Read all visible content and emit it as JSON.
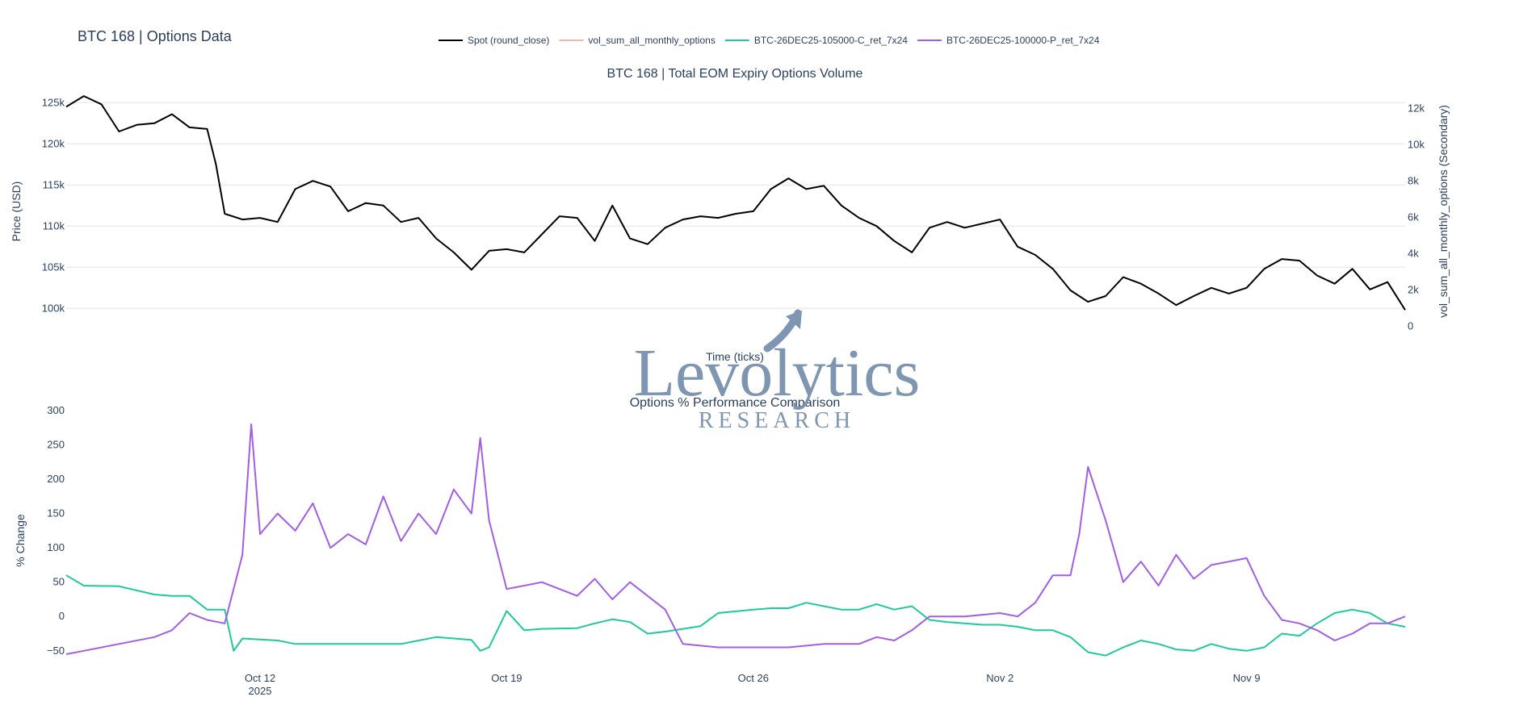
{
  "page_title": "BTC 168 | Options Data",
  "logo": {
    "brand": "Levolytics",
    "sub": "RESEARCH"
  },
  "legend": [
    {
      "name": "Spot (round_close)",
      "color": "#000000",
      "muted": false
    },
    {
      "name": "vol_sum_all_monthly_options",
      "color": "#f4b6a6",
      "muted": true
    },
    {
      "name": "BTC-26DEC25-105000-C_ret_7x24",
      "color": "#1ec99b",
      "muted": false
    },
    {
      "name": "BTC-26DEC25-100000-P_ret_7x24",
      "color": "#a25ee6",
      "muted": false
    }
  ],
  "chart_data": [
    {
      "type": "line",
      "title": "BTC 168 | Total EOM Expiry Options Volume",
      "xlabel": "Time (ticks)",
      "ylabel": "Price (USD)",
      "y2label": "vol_sum_all_monthly_options (Secondary)",
      "xlim": [
        "2025-10-06T12:00",
        "2025-11-13T12:00"
      ],
      "ylim": [
        96500,
        126500
      ],
      "y2lim": [
        -600,
        13000
      ],
      "yticks": [
        {
          "v": 100000,
          "label": "100k"
        },
        {
          "v": 105000,
          "label": "105k"
        },
        {
          "v": 110000,
          "label": "110k"
        },
        {
          "v": 115000,
          "label": "115k"
        },
        {
          "v": 120000,
          "label": "120k"
        },
        {
          "v": 125000,
          "label": "125k"
        }
      ],
      "y2ticks": [
        {
          "v": 0,
          "label": "0"
        },
        {
          "v": 2000,
          "label": "2k"
        },
        {
          "v": 4000,
          "label": "4k"
        },
        {
          "v": 6000,
          "label": "6k"
        },
        {
          "v": 8000,
          "label": "8k"
        },
        {
          "v": 10000,
          "label": "10k"
        },
        {
          "v": 12000,
          "label": "12k"
        }
      ],
      "grid": true,
      "series": [
        {
          "name": "Spot (round_close)",
          "color": "#000000",
          "x": [
            "2025-10-06T12:00",
            "2025-10-07T00:00",
            "2025-10-07T12:00",
            "2025-10-08T00:00",
            "2025-10-08T12:00",
            "2025-10-09T00:00",
            "2025-10-09T12:00",
            "2025-10-10T00:00",
            "2025-10-10T12:00",
            "2025-10-10T18:00",
            "2025-10-11T00:00",
            "2025-10-11T12:00",
            "2025-10-12T00:00",
            "2025-10-12T12:00",
            "2025-10-13T00:00",
            "2025-10-13T12:00",
            "2025-10-14T00:00",
            "2025-10-14T12:00",
            "2025-10-15T00:00",
            "2025-10-15T12:00",
            "2025-10-16T00:00",
            "2025-10-16T12:00",
            "2025-10-17T00:00",
            "2025-10-17T12:00",
            "2025-10-18T00:00",
            "2025-10-18T12:00",
            "2025-10-19T00:00",
            "2025-10-19T12:00",
            "2025-10-20T00:00",
            "2025-10-20T12:00",
            "2025-10-21T00:00",
            "2025-10-21T12:00",
            "2025-10-22T00:00",
            "2025-10-22T12:00",
            "2025-10-23T00:00",
            "2025-10-23T12:00",
            "2025-10-24T00:00",
            "2025-10-24T12:00",
            "2025-10-25T00:00",
            "2025-10-25T12:00",
            "2025-10-26T00:00",
            "2025-10-26T12:00",
            "2025-10-27T00:00",
            "2025-10-27T12:00",
            "2025-10-28T00:00",
            "2025-10-28T12:00",
            "2025-10-29T00:00",
            "2025-10-29T12:00",
            "2025-10-30T00:00",
            "2025-10-30T12:00",
            "2025-10-31T00:00",
            "2025-10-31T12:00",
            "2025-11-01T00:00",
            "2025-11-01T12:00",
            "2025-11-02T00:00",
            "2025-11-02T12:00",
            "2025-11-03T00:00",
            "2025-11-03T12:00",
            "2025-11-04T00:00",
            "2025-11-04T12:00",
            "2025-11-05T00:00",
            "2025-11-05T12:00",
            "2025-11-06T00:00",
            "2025-11-06T12:00",
            "2025-11-07T00:00",
            "2025-11-07T12:00",
            "2025-11-08T00:00",
            "2025-11-08T12:00",
            "2025-11-09T00:00",
            "2025-11-09T12:00",
            "2025-11-10T00:00",
            "2025-11-10T12:00",
            "2025-11-11T00:00",
            "2025-11-11T12:00",
            "2025-11-12T00:00",
            "2025-11-12T12:00",
            "2025-11-13T00:00",
            "2025-11-13T12:00"
          ],
          "y": [
            124500,
            125800,
            124800,
            121500,
            122300,
            122500,
            123600,
            122000,
            121800,
            117500,
            111500,
            110800,
            111000,
            110500,
            114500,
            115500,
            114800,
            111800,
            112800,
            112500,
            110500,
            111000,
            108500,
            106800,
            104700,
            107000,
            107200,
            106800,
            109000,
            111200,
            111000,
            108200,
            112500,
            108500,
            107800,
            109800,
            110800,
            111200,
            111000,
            111500,
            111800,
            114500,
            115800,
            114500,
            114900,
            112500,
            111000,
            110000,
            108200,
            106800,
            109800,
            110500,
            109800,
            110300,
            110800,
            107500,
            106500,
            104800,
            102200,
            100800,
            101500,
            103800,
            103000,
            101800,
            100400,
            101500,
            102500,
            101800,
            102500,
            104800,
            106000,
            105800,
            104000,
            103000,
            104800,
            102300,
            103200,
            99800
          ]
        },
        {
          "name": "vol_sum_all_monthly_options",
          "color": "#f4b6a6",
          "x": [],
          "y": []
        }
      ]
    },
    {
      "type": "line",
      "title": "Options % Performance Comparison",
      "xlabel": "",
      "ylabel": "% Change",
      "xlim": [
        "2025-10-06T12:00",
        "2025-11-13T12:00"
      ],
      "ylim": [
        -62,
        300
      ],
      "yticks": [
        {
          "v": -50,
          "label": "−50"
        },
        {
          "v": 0,
          "label": "0"
        },
        {
          "v": 50,
          "label": "50"
        },
        {
          "v": 100,
          "label": "100"
        },
        {
          "v": 150,
          "label": "150"
        },
        {
          "v": 200,
          "label": "200"
        },
        {
          "v": 250,
          "label": "250"
        },
        {
          "v": 300,
          "label": "300"
        }
      ],
      "xticks": [
        {
          "v": "2025-10-12T00:00",
          "label": "Oct 12",
          "label2": "2025"
        },
        {
          "v": "2025-10-19T00:00",
          "label": "Oct 19",
          "label2": ""
        },
        {
          "v": "2025-10-26T00:00",
          "label": "Oct 26",
          "label2": ""
        },
        {
          "v": "2025-11-02T00:00",
          "label": "Nov 2",
          "label2": ""
        },
        {
          "v": "2025-11-09T00:00",
          "label": "Nov 9",
          "label2": ""
        }
      ],
      "grid": false,
      "series": [
        {
          "name": "BTC-26DEC25-105000-C_ret_7x24",
          "color": "#1ec99b",
          "x": [
            "2025-10-06T12:00",
            "2025-10-07T00:00",
            "2025-10-08T00:00",
            "2025-10-09T00:00",
            "2025-10-09T12:00",
            "2025-10-10T00:00",
            "2025-10-10T12:00",
            "2025-10-11T00:00",
            "2025-10-11T06:00",
            "2025-10-11T12:00",
            "2025-10-12T12:00",
            "2025-10-13T00:00",
            "2025-10-14T00:00",
            "2025-10-15T00:00",
            "2025-10-16T00:00",
            "2025-10-17T00:00",
            "2025-10-17T12:00",
            "2025-10-18T00:00",
            "2025-10-18T06:00",
            "2025-10-18T12:00",
            "2025-10-19T00:00",
            "2025-10-19T12:00",
            "2025-10-20T00:00",
            "2025-10-21T00:00",
            "2025-10-21T12:00",
            "2025-10-22T00:00",
            "2025-10-22T12:00",
            "2025-10-23T00:00",
            "2025-10-23T12:00",
            "2025-10-24T00:00",
            "2025-10-24T12:00",
            "2025-10-25T00:00",
            "2025-10-26T00:00",
            "2025-10-26T12:00",
            "2025-10-27T00:00",
            "2025-10-27T12:00",
            "2025-10-28T00:00",
            "2025-10-28T12:00",
            "2025-10-29T00:00",
            "2025-10-29T12:00",
            "2025-10-30T00:00",
            "2025-10-30T12:00",
            "2025-10-31T00:00",
            "2025-10-31T12:00",
            "2025-11-01T00:00",
            "2025-11-01T12:00",
            "2025-11-02T00:00",
            "2025-11-02T12:00",
            "2025-11-03T00:00",
            "2025-11-03T12:00",
            "2025-11-04T00:00",
            "2025-11-04T12:00",
            "2025-11-05T00:00",
            "2025-11-05T12:00",
            "2025-11-06T00:00",
            "2025-11-06T12:00",
            "2025-11-07T00:00",
            "2025-11-07T12:00",
            "2025-11-08T00:00",
            "2025-11-08T12:00",
            "2025-11-09T00:00",
            "2025-11-09T12:00",
            "2025-11-10T00:00",
            "2025-11-10T12:00",
            "2025-11-11T00:00",
            "2025-11-11T12:00",
            "2025-11-12T00:00",
            "2025-11-12T12:00",
            "2025-11-13T00:00",
            "2025-11-13T12:00"
          ],
          "y": [
            60,
            45,
            44,
            32,
            30,
            30,
            10,
            10,
            -50,
            -32,
            -35,
            -40,
            -40,
            -40,
            -40,
            -30,
            -32,
            -34,
            -50,
            -45,
            8,
            -20,
            -18,
            -17,
            -10,
            -4,
            -8,
            -25,
            -22,
            -18,
            -14,
            5,
            10,
            12,
            12,
            20,
            15,
            10,
            10,
            18,
            10,
            15,
            -5,
            -8,
            -10,
            -12,
            -12,
            -15,
            -20,
            -20,
            -30,
            -52,
            -57,
            -45,
            -35,
            -40,
            -48,
            -50,
            -40,
            -47,
            -50,
            -45,
            -25,
            -28,
            -10,
            5,
            10,
            5,
            -10,
            -15
          ]
        },
        {
          "name": "BTC-26DEC25-100000-P_ret_7x24",
          "color": "#a25ee6",
          "x": [
            "2025-10-06T12:00",
            "2025-10-07T00:00",
            "2025-10-08T00:00",
            "2025-10-09T00:00",
            "2025-10-09T12:00",
            "2025-10-10T00:00",
            "2025-10-10T12:00",
            "2025-10-11T00:00",
            "2025-10-11T12:00",
            "2025-10-11T18:00",
            "2025-10-12T00:00",
            "2025-10-12T12:00",
            "2025-10-13T00:00",
            "2025-10-13T12:00",
            "2025-10-14T00:00",
            "2025-10-14T12:00",
            "2025-10-15T00:00",
            "2025-10-15T12:00",
            "2025-10-16T00:00",
            "2025-10-16T12:00",
            "2025-10-17T00:00",
            "2025-10-17T12:00",
            "2025-10-18T00:00",
            "2025-10-18T06:00",
            "2025-10-18T12:00",
            "2025-10-19T00:00",
            "2025-10-19T12:00",
            "2025-10-20T00:00",
            "2025-10-20T12:00",
            "2025-10-21T00:00",
            "2025-10-21T12:00",
            "2025-10-22T00:00",
            "2025-10-22T12:00",
            "2025-10-23T00:00",
            "2025-10-23T12:00",
            "2025-10-24T00:00",
            "2025-10-25T00:00",
            "2025-10-26T00:00",
            "2025-10-27T00:00",
            "2025-10-28T00:00",
            "2025-10-29T00:00",
            "2025-10-29T12:00",
            "2025-10-30T00:00",
            "2025-10-30T12:00",
            "2025-10-31T00:00",
            "2025-11-01T00:00",
            "2025-11-02T00:00",
            "2025-11-02T12:00",
            "2025-11-03T00:00",
            "2025-11-03T12:00",
            "2025-11-04T00:00",
            "2025-11-04T06:00",
            "2025-11-04T12:00",
            "2025-11-05T00:00",
            "2025-11-05T12:00",
            "2025-11-06T00:00",
            "2025-11-06T12:00",
            "2025-11-07T00:00",
            "2025-11-07T12:00",
            "2025-11-08T00:00",
            "2025-11-08T12:00",
            "2025-11-09T00:00",
            "2025-11-09T12:00",
            "2025-11-10T00:00",
            "2025-11-10T12:00",
            "2025-11-11T00:00",
            "2025-11-11T12:00",
            "2025-11-12T00:00",
            "2025-11-12T12:00",
            "2025-11-13T00:00",
            "2025-11-13T12:00"
          ],
          "y": [
            -55,
            -50,
            -40,
            -30,
            -20,
            5,
            -5,
            -10,
            90,
            280,
            120,
            150,
            125,
            165,
            100,
            120,
            105,
            175,
            110,
            150,
            120,
            185,
            150,
            260,
            140,
            40,
            45,
            50,
            40,
            30,
            55,
            25,
            50,
            30,
            10,
            -40,
            -45,
            -45,
            -45,
            -40,
            -40,
            -30,
            -35,
            -20,
            0,
            0,
            5,
            0,
            20,
            60,
            60,
            120,
            218,
            140,
            50,
            80,
            45,
            90,
            55,
            75,
            80,
            85,
            30,
            -5,
            -10,
            -20,
            -35,
            -25,
            -10,
            -10,
            0
          ]
        }
      ]
    }
  ]
}
